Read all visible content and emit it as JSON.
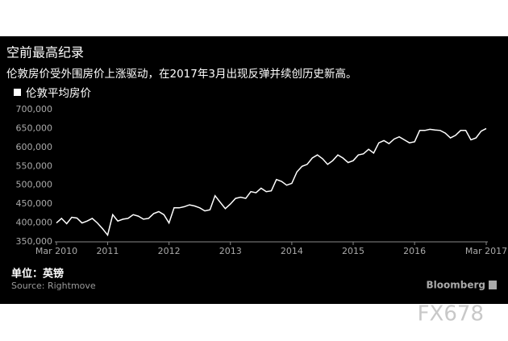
{
  "chart_data": {
    "type": "line",
    "title": "空前最高纪录",
    "subtitle": "伦敦房价受外围房价上涨驱动，在2017年3月出现反弹并续创历史新高。",
    "unit_note": "单位：英镑",
    "source": "Source: Rightmove",
    "brand": "Bloomberg",
    "watermark": "FX678",
    "categories": [
      "Mar 2010",
      null,
      null,
      null,
      null,
      null,
      null,
      null,
      null,
      null,
      "2011",
      null,
      null,
      null,
      null,
      null,
      null,
      null,
      null,
      null,
      null,
      null,
      "2012",
      null,
      null,
      null,
      null,
      null,
      null,
      null,
      null,
      null,
      null,
      null,
      "2013",
      null,
      null,
      null,
      null,
      null,
      null,
      null,
      null,
      null,
      null,
      null,
      "2014",
      null,
      null,
      null,
      null,
      null,
      null,
      null,
      null,
      null,
      null,
      null,
      "2015",
      null,
      null,
      null,
      null,
      null,
      null,
      null,
      null,
      null,
      null,
      null,
      "2016",
      null,
      null,
      null,
      null,
      null,
      null,
      null,
      null,
      null,
      null,
      null,
      null,
      null,
      "Mar 2017"
    ],
    "series": [
      {
        "name": "伦敦平均房价",
        "color": "#ffffff",
        "values": [
          400000,
          412000,
          398000,
          415000,
          413000,
          400000,
          405000,
          412000,
          400000,
          385000,
          368000,
          422000,
          405000,
          410000,
          412000,
          422000,
          418000,
          410000,
          412000,
          425000,
          430000,
          422000,
          400000,
          440000,
          440000,
          443000,
          448000,
          445000,
          440000,
          432000,
          435000,
          472000,
          455000,
          438000,
          450000,
          465000,
          468000,
          465000,
          483000,
          480000,
          492000,
          483000,
          485000,
          515000,
          510000,
          500000,
          505000,
          535000,
          550000,
          555000,
          572000,
          580000,
          570000,
          555000,
          565000,
          580000,
          572000,
          560000,
          565000,
          580000,
          583000,
          595000,
          585000,
          612000,
          618000,
          610000,
          622000,
          628000,
          620000,
          612000,
          615000,
          645000,
          645000,
          648000,
          646000,
          645000,
          638000,
          625000,
          632000,
          645000,
          645000,
          620000,
          625000,
          643000,
          650000
        ]
      }
    ],
    "ylim": [
      350000,
      700000
    ],
    "yticks": [
      {
        "value": 350000,
        "label": "350,000"
      },
      {
        "value": 400000,
        "label": "400,000"
      },
      {
        "value": 450000,
        "label": "450,000"
      },
      {
        "value": 500000,
        "label": "500,000"
      },
      {
        "value": 550000,
        "label": "550,000"
      },
      {
        "value": 600000,
        "label": "600,000"
      },
      {
        "value": 650000,
        "label": "650,000"
      },
      {
        "value": 700000,
        "label": "700,000"
      }
    ],
    "grid": false
  }
}
